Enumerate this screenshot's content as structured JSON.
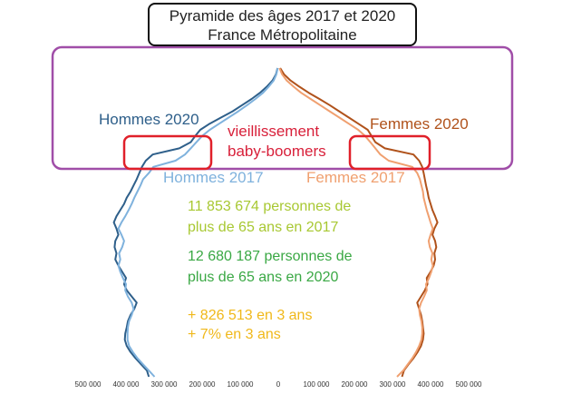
{
  "title": {
    "line1": "Pyramide des âges 2017 et 2020",
    "line2": "France Métropolitaine"
  },
  "annotations": {
    "aging": [
      "vieillissement",
      "baby-boomers"
    ],
    "stats_2017": [
      "11 853 674 personnes de",
      "plus de 65 ans en 2017"
    ],
    "stats_2020": [
      "12 680 187 personnes de",
      "plus de 65 ans en 2020"
    ],
    "delta": [
      "+ 826 513 en 3 ans",
      "+ 7% en 3 ans"
    ]
  },
  "colors": {
    "hommes_2020": "#2e5f8a",
    "hommes_2017": "#7fb2dd",
    "femmes_2020": "#b0521b",
    "femmes_2017": "#f0a070",
    "highlight_box": "#a04ea8",
    "red_box": "#e0202a",
    "aging_text": "#d8203a",
    "stats_2017": "#a8c832",
    "stats_2020": "#3aa844",
    "delta": "#f0b81a"
  },
  "chart_data": {
    "type": "line",
    "orientation": "population-pyramid",
    "title": "Pyramide des âges 2017 et 2020 France Métropolitaine",
    "xlabel": "",
    "ylabel": "",
    "x_ticks": [
      {
        "value": -500000,
        "label": "500 000"
      },
      {
        "value": -400000,
        "label": "400 000"
      },
      {
        "value": -300000,
        "label": "300 000"
      },
      {
        "value": -200000,
        "label": "200 000"
      },
      {
        "value": -100000,
        "label": "100 000"
      },
      {
        "value": 0,
        "label": "0"
      },
      {
        "value": 100000,
        "label": "100 000"
      },
      {
        "value": 200000,
        "label": "200 000"
      },
      {
        "value": 300000,
        "label": "300 000"
      },
      {
        "value": 400000,
        "label": "400 000"
      },
      {
        "value": 500000,
        "label": "500 000"
      }
    ],
    "xlim": [
      -560000,
      560000
    ],
    "ylim": [
      0,
      105
    ],
    "grid": false,
    "series": [
      {
        "name": "Hommes 2020",
        "side": "left",
        "color": "#2e5f8a",
        "points": [
          [
            0,
            340000
          ],
          [
            2,
            345000
          ],
          [
            4,
            360000
          ],
          [
            6,
            375000
          ],
          [
            8,
            388000
          ],
          [
            10,
            398000
          ],
          [
            12,
            403000
          ],
          [
            14,
            402000
          ],
          [
            16,
            398000
          ],
          [
            18,
            395000
          ],
          [
            20,
            388000
          ],
          [
            22,
            378000
          ],
          [
            24,
            372000
          ],
          [
            26,
            385000
          ],
          [
            28,
            398000
          ],
          [
            30,
            405000
          ],
          [
            32,
            400000
          ],
          [
            34,
            410000
          ],
          [
            36,
            420000
          ],
          [
            38,
            428000
          ],
          [
            40,
            425000
          ],
          [
            42,
            430000
          ],
          [
            44,
            428000
          ],
          [
            46,
            420000
          ],
          [
            48,
            425000
          ],
          [
            50,
            432000
          ],
          [
            52,
            425000
          ],
          [
            54,
            415000
          ],
          [
            56,
            405000
          ],
          [
            58,
            398000
          ],
          [
            60,
            388000
          ],
          [
            62,
            380000
          ],
          [
            64,
            372000
          ],
          [
            66,
            365000
          ],
          [
            68,
            358000
          ],
          [
            70,
            348000
          ],
          [
            72,
            330000
          ],
          [
            74,
            260000
          ],
          [
            76,
            230000
          ],
          [
            78,
            218000
          ],
          [
            80,
            205000
          ],
          [
            82,
            180000
          ],
          [
            84,
            150000
          ],
          [
            86,
            120000
          ],
          [
            88,
            95000
          ],
          [
            90,
            70000
          ],
          [
            92,
            48000
          ],
          [
            94,
            30000
          ],
          [
            96,
            15000
          ],
          [
            98,
            6000
          ],
          [
            100,
            2000
          ]
        ]
      },
      {
        "name": "Hommes 2017",
        "side": "left",
        "color": "#7fb2dd",
        "points": [
          [
            0,
            325000
          ],
          [
            2,
            340000
          ],
          [
            4,
            355000
          ],
          [
            6,
            370000
          ],
          [
            8,
            382000
          ],
          [
            10,
            392000
          ],
          [
            12,
            396000
          ],
          [
            14,
            396000
          ],
          [
            16,
            395000
          ],
          [
            18,
            392000
          ],
          [
            20,
            385000
          ],
          [
            22,
            380000
          ],
          [
            24,
            385000
          ],
          [
            26,
            395000
          ],
          [
            28,
            402000
          ],
          [
            30,
            400000
          ],
          [
            32,
            408000
          ],
          [
            34,
            415000
          ],
          [
            36,
            420000
          ],
          [
            38,
            415000
          ],
          [
            40,
            418000
          ],
          [
            42,
            410000
          ],
          [
            44,
            405000
          ],
          [
            46,
            412000
          ],
          [
            48,
            420000
          ],
          [
            50,
            412000
          ],
          [
            52,
            402000
          ],
          [
            54,
            393000
          ],
          [
            56,
            385000
          ],
          [
            58,
            378000
          ],
          [
            60,
            370000
          ],
          [
            62,
            362000
          ],
          [
            64,
            355000
          ],
          [
            66,
            340000
          ],
          [
            68,
            328000
          ],
          [
            70,
            270000
          ],
          [
            72,
            245000
          ],
          [
            74,
            230000
          ],
          [
            76,
            215000
          ],
          [
            78,
            200000
          ],
          [
            80,
            180000
          ],
          [
            82,
            155000
          ],
          [
            84,
            130000
          ],
          [
            86,
            105000
          ],
          [
            88,
            82000
          ],
          [
            90,
            60000
          ],
          [
            92,
            40000
          ],
          [
            94,
            25000
          ],
          [
            96,
            12000
          ],
          [
            98,
            5000
          ],
          [
            100,
            1500
          ]
        ]
      },
      {
        "name": "Femmes 2020",
        "side": "right",
        "color": "#b0521b",
        "points": [
          [
            0,
            325000
          ],
          [
            2,
            330000
          ],
          [
            4,
            342000
          ],
          [
            6,
            355000
          ],
          [
            8,
            366000
          ],
          [
            10,
            375000
          ],
          [
            12,
            380000
          ],
          [
            14,
            382000
          ],
          [
            16,
            380000
          ],
          [
            18,
            378000
          ],
          [
            20,
            375000
          ],
          [
            22,
            370000
          ],
          [
            24,
            365000
          ],
          [
            26,
            375000
          ],
          [
            28,
            385000
          ],
          [
            30,
            392000
          ],
          [
            32,
            390000
          ],
          [
            34,
            400000
          ],
          [
            36,
            408000
          ],
          [
            38,
            412000
          ],
          [
            40,
            410000
          ],
          [
            42,
            415000
          ],
          [
            44,
            412000
          ],
          [
            46,
            405000
          ],
          [
            48,
            410000
          ],
          [
            50,
            418000
          ],
          [
            52,
            412000
          ],
          [
            54,
            405000
          ],
          [
            56,
            400000
          ],
          [
            58,
            395000
          ],
          [
            60,
            392000
          ],
          [
            62,
            388000
          ],
          [
            64,
            385000
          ],
          [
            66,
            382000
          ],
          [
            68,
            378000
          ],
          [
            70,
            370000
          ],
          [
            72,
            355000
          ],
          [
            74,
            280000
          ],
          [
            76,
            255000
          ],
          [
            78,
            245000
          ],
          [
            80,
            235000
          ],
          [
            82,
            210000
          ],
          [
            84,
            185000
          ],
          [
            86,
            160000
          ],
          [
            88,
            135000
          ],
          [
            90,
            108000
          ],
          [
            92,
            80000
          ],
          [
            94,
            55000
          ],
          [
            96,
            32000
          ],
          [
            98,
            15000
          ],
          [
            100,
            5000
          ]
        ]
      },
      {
        "name": "Femmes 2017",
        "side": "right",
        "color": "#f0a070",
        "points": [
          [
            0,
            312000
          ],
          [
            2,
            328000
          ],
          [
            4,
            340000
          ],
          [
            6,
            352000
          ],
          [
            8,
            362000
          ],
          [
            10,
            370000
          ],
          [
            12,
            376000
          ],
          [
            14,
            378000
          ],
          [
            16,
            378000
          ],
          [
            18,
            376000
          ],
          [
            20,
            372000
          ],
          [
            22,
            370000
          ],
          [
            24,
            375000
          ],
          [
            26,
            383000
          ],
          [
            28,
            390000
          ],
          [
            30,
            388000
          ],
          [
            32,
            396000
          ],
          [
            34,
            402000
          ],
          [
            36,
            406000
          ],
          [
            38,
            402000
          ],
          [
            40,
            405000
          ],
          [
            42,
            398000
          ],
          [
            44,
            395000
          ],
          [
            46,
            400000
          ],
          [
            48,
            406000
          ],
          [
            50,
            400000
          ],
          [
            52,
            395000
          ],
          [
            54,
            390000
          ],
          [
            56,
            386000
          ],
          [
            58,
            382000
          ],
          [
            60,
            380000
          ],
          [
            62,
            376000
          ],
          [
            64,
            372000
          ],
          [
            66,
            365000
          ],
          [
            68,
            352000
          ],
          [
            70,
            290000
          ],
          [
            72,
            268000
          ],
          [
            74,
            255000
          ],
          [
            76,
            242000
          ],
          [
            78,
            228000
          ],
          [
            80,
            210000
          ],
          [
            82,
            185000
          ],
          [
            84,
            160000
          ],
          [
            86,
            135000
          ],
          [
            88,
            110000
          ],
          [
            90,
            85000
          ],
          [
            92,
            60000
          ],
          [
            94,
            40000
          ],
          [
            96,
            22000
          ],
          [
            98,
            10000
          ],
          [
            100,
            3000
          ]
        ]
      }
    ],
    "legend": [
      {
        "text": "Hommes 2020",
        "color": "#2e5f8a",
        "placement": "upper-left"
      },
      {
        "text": "Hommes 2017",
        "color": "#7fb2dd",
        "placement": "center-left"
      },
      {
        "text": "Femmes 2020",
        "color": "#b0521b",
        "placement": "upper-right"
      },
      {
        "text": "Femmes 2017",
        "color": "#f0a070",
        "placement": "center-right"
      }
    ]
  }
}
